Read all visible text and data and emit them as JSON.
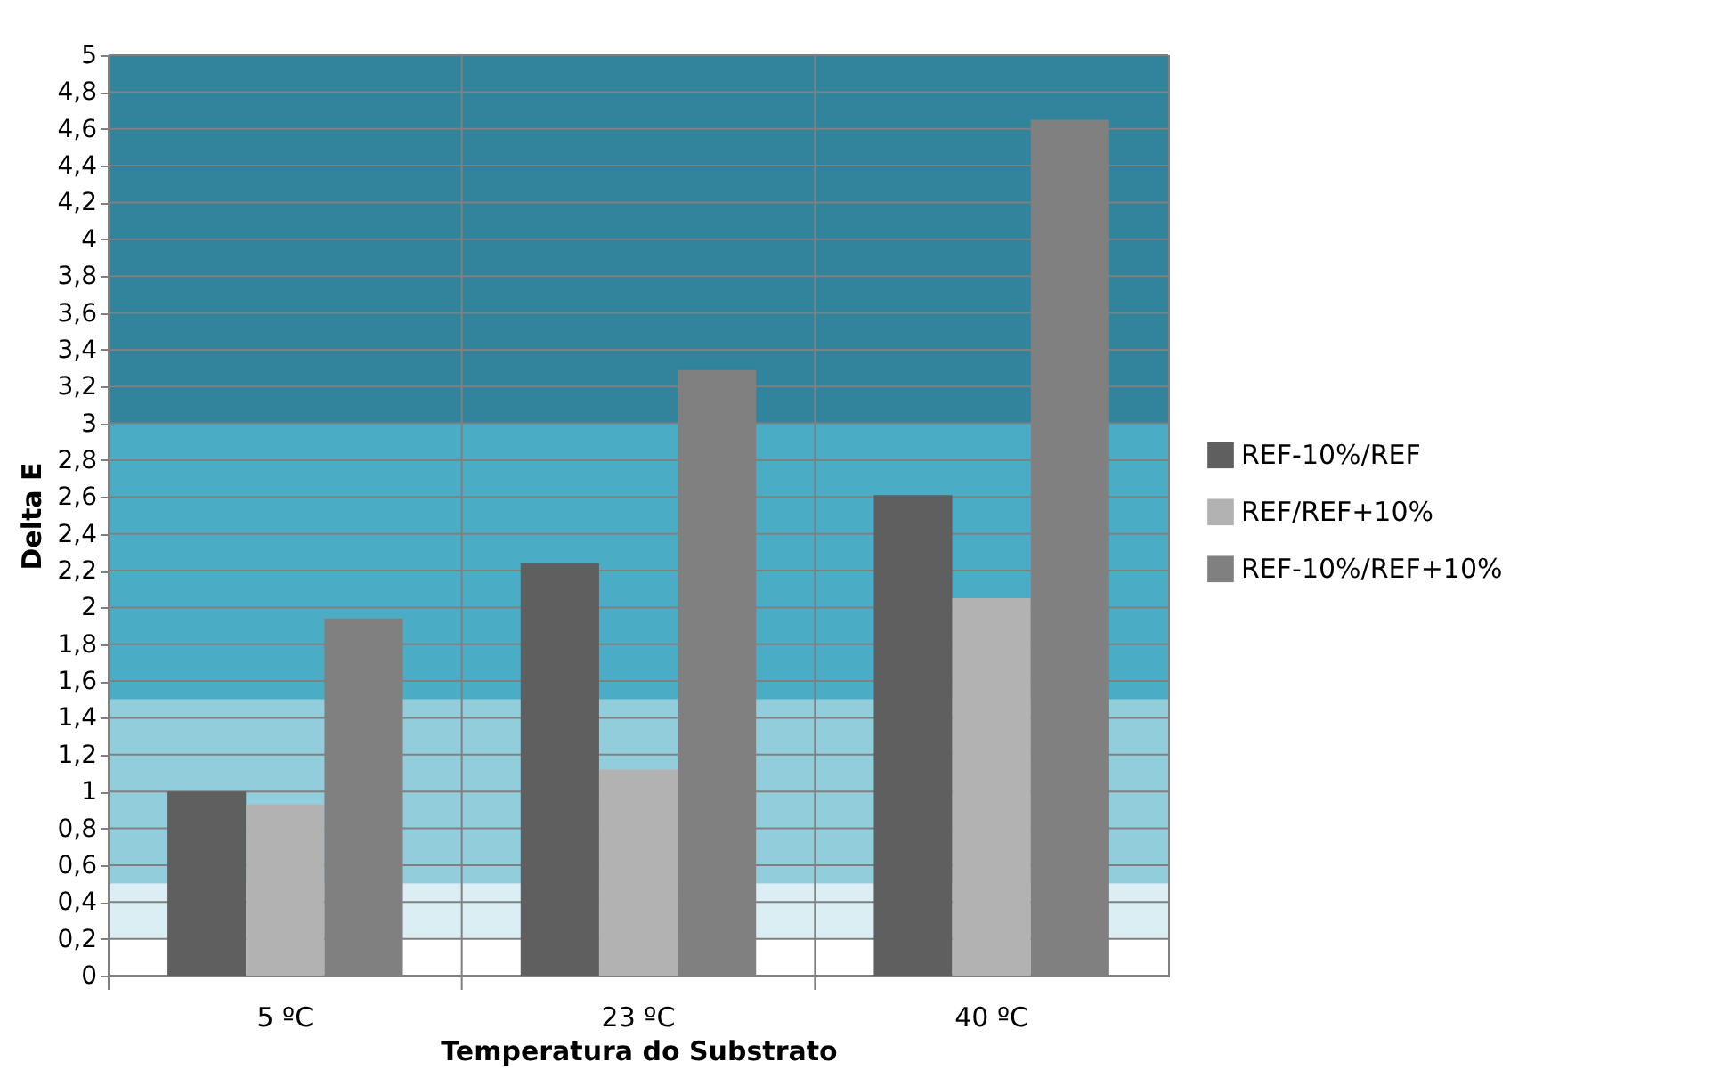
{
  "chart_data": {
    "type": "bar",
    "xlabel": "Temperatura do Substrato",
    "ylabel": "Delta E",
    "categories": [
      "5 ºC",
      "23 ºC",
      "40 ºC"
    ],
    "series": [
      {
        "name": "REF-10%/REF",
        "color": "#5f5f5f",
        "values": [
          1.0,
          2.24,
          2.61
        ]
      },
      {
        "name": "REF/REF+10%",
        "color": "#b2b2b2",
        "values": [
          0.93,
          1.12,
          2.05
        ]
      },
      {
        "name": "REF-10%/REF+10%",
        "color": "#808080",
        "values": [
          1.94,
          3.29,
          4.65
        ]
      }
    ],
    "ylim": [
      0,
      5
    ],
    "yticks": [
      0,
      {
        "value": 0.2,
        "label": "0,2"
      },
      {
        "value": 0.4,
        "label": "0,4"
      },
      {
        "value": 0.6,
        "label": "0,6"
      },
      {
        "value": 0.8,
        "label": "0,8"
      },
      1,
      {
        "value": 1.2,
        "label": "1,2"
      },
      {
        "value": 1.4,
        "label": "1,4"
      },
      {
        "value": 1.6,
        "label": "1,6"
      },
      {
        "value": 1.8,
        "label": "1,8"
      },
      2,
      {
        "value": 2.2,
        "label": "2,2"
      },
      {
        "value": 2.4,
        "label": "2,4"
      },
      {
        "value": 2.6,
        "label": "2,6"
      },
      {
        "value": 2.8,
        "label": "2,8"
      },
      3,
      {
        "value": 3.2,
        "label": "3,2"
      },
      {
        "value": 3.4,
        "label": "3,4"
      },
      {
        "value": 3.6,
        "label": "3,6"
      },
      {
        "value": 3.8,
        "label": "3,8"
      },
      4,
      {
        "value": 4.2,
        "label": "4,2"
      },
      {
        "value": 4.4,
        "label": "4,4"
      },
      {
        "value": 4.6,
        "label": "4,6"
      },
      {
        "value": 4.8,
        "label": "4,8"
      },
      5
    ],
    "bands": [
      {
        "axis": "y",
        "from": 0.2,
        "to": 0.5,
        "color": "#dbeef4"
      },
      {
        "axis": "y",
        "from": 0.5,
        "to": 1.5,
        "color": "#92cddc"
      },
      {
        "axis": "y",
        "from": 1.5,
        "to": 3,
        "color": "#4bacc6"
      },
      {
        "axis": "y",
        "from": 3,
        "to": 5,
        "color": "#31849b"
      }
    ],
    "grid": true,
    "legend": "right"
  }
}
